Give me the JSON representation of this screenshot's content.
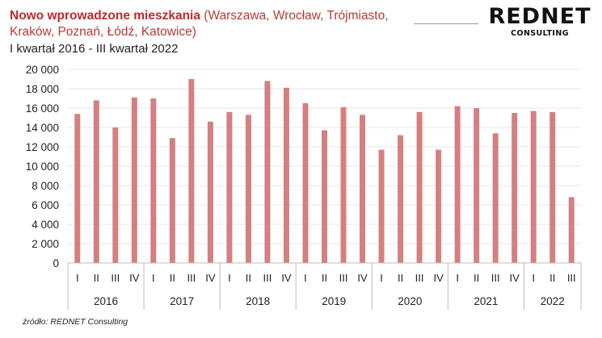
{
  "header": {
    "title_bold": "Nowo wprowadzone mieszkania",
    "title_rest_line1": " (Warszawa, Wrocław, Trójmiasto,",
    "title_line2": "Kraków, Poznań, Łódź, Katowice)",
    "subtitle": "I kwartał 2016 - III kwartał 2022"
  },
  "logo": {
    "main": "REDNET",
    "sub": "CONSULTING"
  },
  "source": "źródło: REDNET Consulting",
  "colors": {
    "bar": "#d48080",
    "grid": "#e6e6e6",
    "title": "#c0282d"
  },
  "chart_data": {
    "type": "bar",
    "categories": [
      "I",
      "II",
      "III",
      "IV",
      "I",
      "II",
      "III",
      "IV",
      "I",
      "II",
      "III",
      "IV",
      "I",
      "II",
      "III",
      "IV",
      "I",
      "II",
      "III",
      "IV",
      "I",
      "II",
      "III",
      "IV",
      "I",
      "II",
      "III"
    ],
    "years": [
      {
        "label": "2016",
        "quarters": 4
      },
      {
        "label": "2017",
        "quarters": 4
      },
      {
        "label": "2018",
        "quarters": 4
      },
      {
        "label": "2019",
        "quarters": 4
      },
      {
        "label": "2020",
        "quarters": 4
      },
      {
        "label": "2021",
        "quarters": 4
      },
      {
        "label": "2022",
        "quarters": 3
      }
    ],
    "values": [
      15400,
      16800,
      14000,
      17100,
      17000,
      12900,
      19000,
      14600,
      15600,
      15300,
      18800,
      18100,
      16500,
      13700,
      16100,
      15300,
      11700,
      13200,
      15600,
      11700,
      16200,
      16000,
      13400,
      15500,
      15700,
      15600,
      6800
    ],
    "ylim": [
      0,
      20000
    ],
    "yticks": [
      0,
      2000,
      4000,
      6000,
      8000,
      10000,
      12000,
      14000,
      16000,
      18000,
      20000
    ],
    "ytick_labels": [
      "0",
      "2 000",
      "4 000",
      "6 000",
      "8 000",
      "10 000",
      "12 000",
      "14 000",
      "16 000",
      "18 000",
      "20 000"
    ],
    "grid": true,
    "legend": "none"
  }
}
